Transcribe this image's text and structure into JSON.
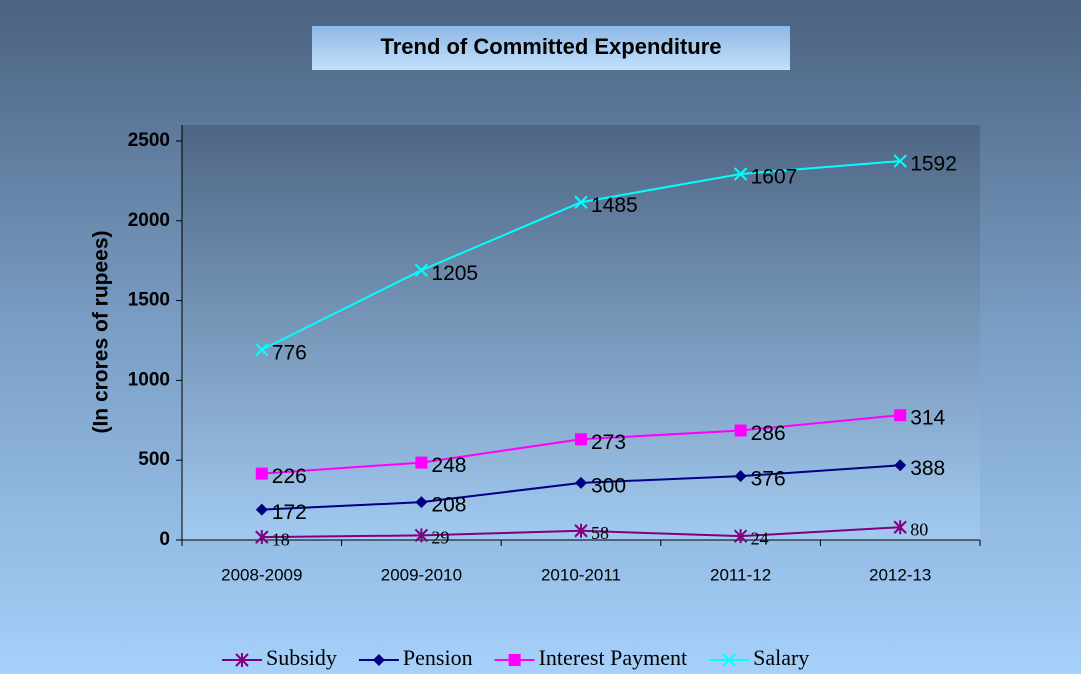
{
  "chart_data": {
    "type": "stacked line",
    "title": "Trend of Committed Expenditure",
    "y_label": "(In crores of rupees)",
    "categories": [
      "2008-2009",
      "2009-2010",
      "2010-2011",
      "2011-12",
      "2012-13"
    ],
    "series": [
      {
        "name": "Subsidy",
        "color": "#800080",
        "marker": "star",
        "values": [
          18,
          29,
          58,
          24,
          80
        ]
      },
      {
        "name": "Pension",
        "color": "#000080",
        "marker": "diamond",
        "values": [
          172,
          208,
          300,
          376,
          388
        ]
      },
      {
        "name": "Interest Payment",
        "color": "#ff00ff",
        "marker": "square",
        "values": [
          226,
          248,
          273,
          286,
          314
        ]
      },
      {
        "name": "Salary",
        "color": "#00ffff",
        "marker": "x",
        "values": [
          776,
          1205,
          1485,
          1607,
          1592
        ]
      }
    ],
    "ylim": [
      0,
      2600
    ],
    "yticks": [
      0,
      500,
      1000,
      1500,
      2000,
      2500
    ],
    "legend": "bottom"
  }
}
